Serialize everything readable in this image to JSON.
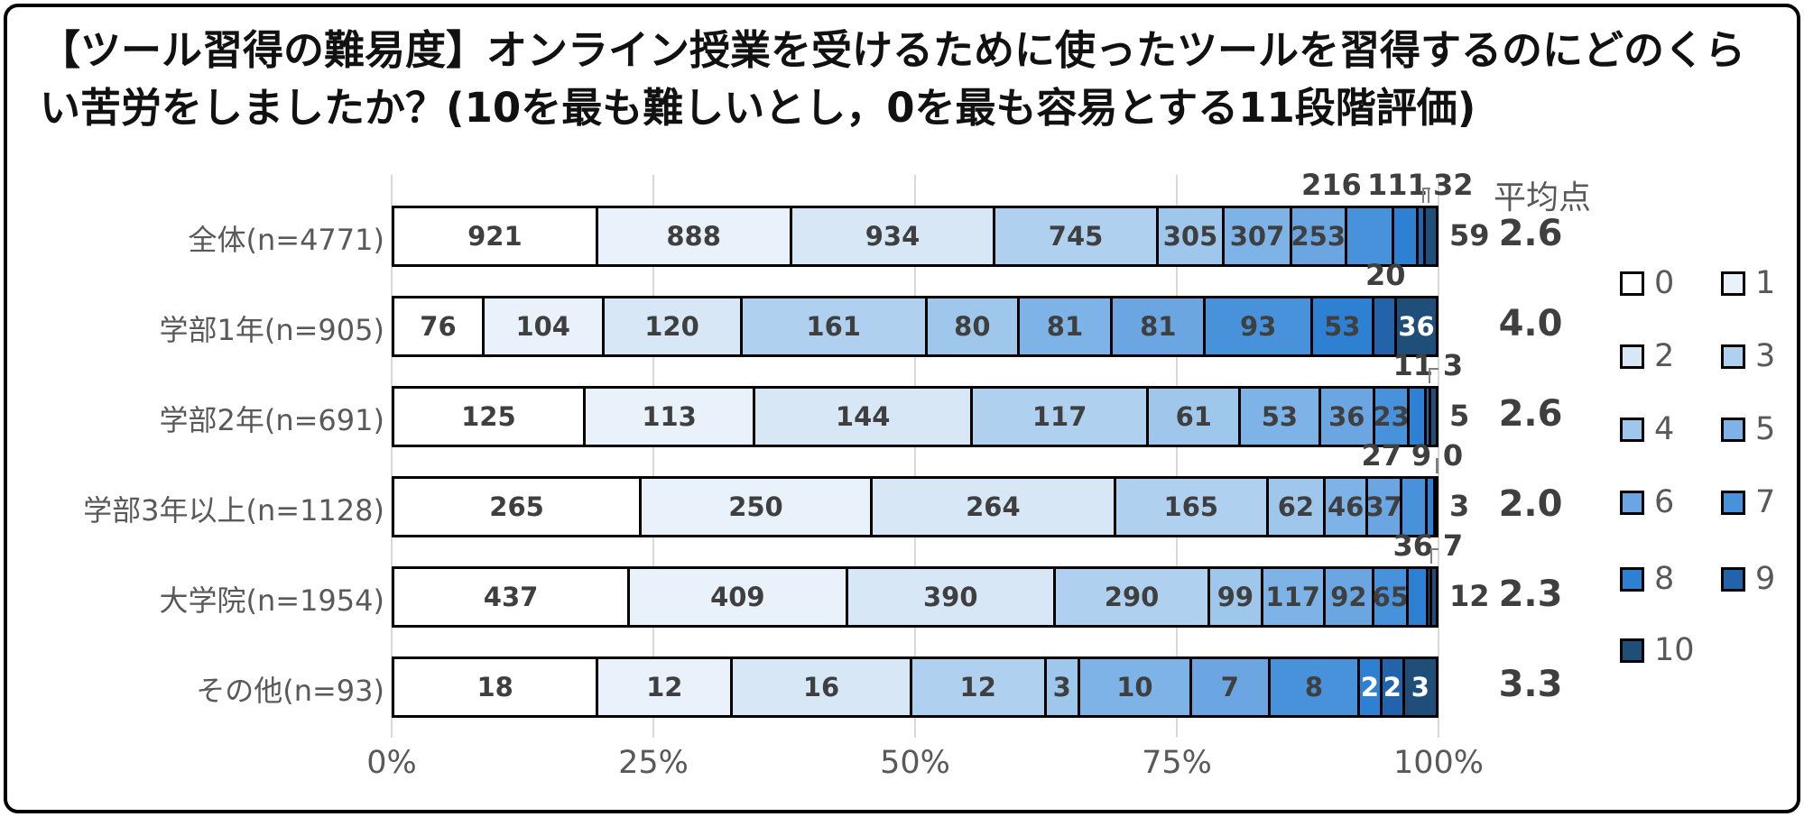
{
  "title": "【ツール習得の難易度】オンライン授業を受けるために使ったツールを習得するのにどのくらい苦労をしましたか？(10を最も難しいとし，0を最も容易とする11段階評価)",
  "mean_header": "平均点",
  "chart_data": {
    "type": "bar",
    "subtype": "stacked-100-horizontal",
    "title": "【ツール習得の難易度】オンライン授業を受けるために使ったツールを習得するのにどのくらい苦労をしましたか？(10を最も難しいとし，0を最も容易とする11段階評価)",
    "score_categories": [
      "0",
      "1",
      "2",
      "3",
      "4",
      "5",
      "6",
      "7",
      "8",
      "9",
      "10"
    ],
    "palette": [
      "#FFFFFF",
      "#E9F1FA",
      "#D8E7F6",
      "#AFD0EF",
      "#9FC7EC",
      "#7EB3E7",
      "#6BA6E2",
      "#4891DB",
      "#2E80D2",
      "#2263AC",
      "#1F4E79"
    ],
    "x_ticks": [
      "0%",
      "25%",
      "50%",
      "75%",
      "100%"
    ],
    "xlim": [
      0,
      100
    ],
    "grid": true,
    "legend": {
      "position": "right",
      "entries": [
        "0",
        "1",
        "2",
        "3",
        "4",
        "5",
        "6",
        "7",
        "8",
        "9",
        "10"
      ]
    },
    "mean_column_header": "平均点",
    "rows": [
      {
        "label": "全体(n=4771)",
        "n": 4771,
        "mean": "2.6",
        "values": [
          921,
          888,
          934,
          745,
          305,
          307,
          253,
          216,
          111,
          32,
          59
        ],
        "label_placement": [
          "in",
          "in",
          "in",
          "in",
          "in",
          "in",
          "in",
          "above",
          "above",
          "above",
          "right"
        ],
        "elbow_scores": [
          8,
          9
        ]
      },
      {
        "label": "学部1年(n=905)",
        "n": 905,
        "mean": "4.0",
        "values": [
          76,
          104,
          120,
          161,
          80,
          81,
          81,
          93,
          53,
          20,
          36
        ],
        "label_placement": [
          "in",
          "in",
          "in",
          "in",
          "in",
          "in",
          "in",
          "in",
          "in",
          "above",
          "in-white"
        ],
        "elbow_scores": []
      },
      {
        "label": "学部2年(n=691)",
        "n": 691,
        "mean": "2.6",
        "values": [
          125,
          113,
          144,
          117,
          61,
          53,
          36,
          23,
          11,
          3,
          5
        ],
        "label_placement": [
          "in",
          "in",
          "in",
          "in",
          "in",
          "in",
          "in",
          "in",
          "above",
          "above",
          "right"
        ],
        "elbow_scores": [
          8,
          9
        ]
      },
      {
        "label": "学部3年以上(n=1128)",
        "n": 1128,
        "mean": "2.0",
        "values": [
          265,
          250,
          264,
          165,
          62,
          46,
          37,
          27,
          9,
          0,
          3
        ],
        "label_placement": [
          "in",
          "in",
          "in",
          "in",
          "in",
          "in",
          "in",
          "above",
          "above",
          "above",
          "right"
        ],
        "elbow_scores": [
          8,
          9
        ]
      },
      {
        "label": "大学院(n=1954)",
        "n": 1954,
        "mean": "2.3",
        "values": [
          437,
          409,
          390,
          290,
          99,
          117,
          92,
          65,
          36,
          7,
          12
        ],
        "label_placement": [
          "in",
          "in",
          "in",
          "in",
          "in",
          "in",
          "in",
          "in",
          "above",
          "above",
          "right"
        ],
        "elbow_scores": [
          9
        ]
      },
      {
        "label": "その他(n=93)",
        "n": 93,
        "mean": "3.3",
        "values": [
          18,
          12,
          16,
          12,
          3,
          10,
          7,
          8,
          2,
          2,
          3
        ],
        "label_placement": [
          "in",
          "in",
          "in",
          "in",
          "in",
          "in",
          "in",
          "in",
          "in-white",
          "in-white",
          "in-white"
        ],
        "elbow_scores": []
      }
    ]
  }
}
